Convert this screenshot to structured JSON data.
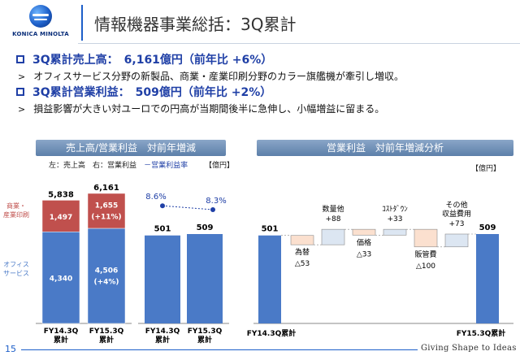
{
  "header": {
    "logo_text": "KONICA MINOLTA",
    "title": "情報機器事業総括：3Q累計"
  },
  "bullets": [
    {
      "main": "3Q累計売上高：　6,161億円（前年比 +6%）",
      "sub": "オフィスサービス分野の新製品、商業・産業印刷分野のカラー旗艦機が牽引し増収。"
    },
    {
      "main": "3Q累計営業利益：　509億円（前年比 +2%）",
      "sub": "損益影響が大きい対ユーロでの円高が当期間後半に急伸し、小幅増益に留まる。"
    }
  ],
  "left_panel": {
    "title": "売上高/営業利益　対前年増減",
    "legend": {
      "left": "左：売上高",
      "right": "右：営業利益",
      "rate": "－営業利益率"
    },
    "unit": "【億円】"
  },
  "right_panel": {
    "title": "営業利益　対前年増減分析",
    "unit": "【億円】"
  },
  "chart_data": [
    {
      "type": "bar",
      "stacked": true,
      "categories": [
        "FY14.3Q\n累計",
        "FY15.3Q\n累計"
      ],
      "series": [
        {
          "name": "オフィス\nサービス",
          "values": [
            4340,
            4506
          ],
          "labels": [
            "4,340",
            "4,506\n(+4%)"
          ],
          "color": "#4a7ac7"
        },
        {
          "name": "商業・\n産業印刷",
          "values": [
            1497,
            1655
          ],
          "labels": [
            "1,497",
            "1,655\n(+11%)"
          ],
          "color": "#c0504d"
        }
      ],
      "totals": [
        "5,838",
        "6,161"
      ]
    },
    {
      "type": "bar",
      "categories": [
        "FY14.3Q\n累計",
        "FY15.3Q\n累計"
      ],
      "values": [
        501,
        509
      ],
      "labels": [
        "501",
        "509"
      ],
      "rate": {
        "values": [
          8.6,
          8.3
        ],
        "labels": [
          "8.6%",
          "8.3%"
        ]
      }
    },
    {
      "type": "bar",
      "waterfall": true,
      "categories": [
        "FY14.3Q累計",
        "為替",
        "数量他",
        "価格",
        "ｺｽﾄﾀﾞｳﾝ",
        "販管費",
        "その他\n収益費用",
        "FY15.3Q累計"
      ],
      "values": [
        501,
        -53,
        88,
        -33,
        33,
        -100,
        73,
        509
      ],
      "labels": [
        "501",
        "△53",
        "+88",
        "△33",
        "+33",
        "△100",
        "+73",
        "509"
      ],
      "colors": {
        "total": "#4a7ac7",
        "increase": "#dce6f2",
        "decrease": "#fbe0cf"
      }
    }
  ],
  "footer": {
    "page": "15",
    "slogan": "Giving Shape to Ideas"
  }
}
